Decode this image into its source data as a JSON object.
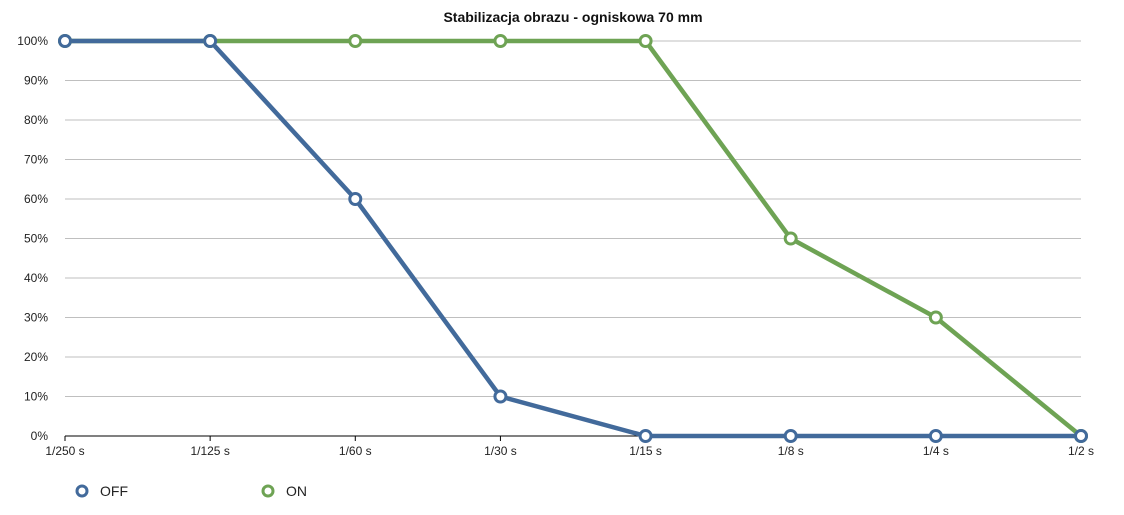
{
  "chart_data": {
    "type": "line",
    "title": "Stabilizacja obrazu - ogniskowa 70 mm",
    "xlabel": "",
    "ylabel": "",
    "categories": [
      "1/250 s",
      "1/125 s",
      "1/60 s",
      "1/30 s",
      "1/15 s",
      "1/8 s",
      "1/4 s",
      "1/2 s"
    ],
    "y_ticks": [
      "0%",
      "10%",
      "20%",
      "30%",
      "40%",
      "50%",
      "60%",
      "70%",
      "80%",
      "90%",
      "100%"
    ],
    "ylim": [
      0,
      100
    ],
    "grid": true,
    "legend_position": "bottom-left",
    "series": [
      {
        "name": "OFF",
        "color": "#426A9B",
        "values": [
          100,
          100,
          60,
          10,
          0,
          0,
          0,
          0
        ]
      },
      {
        "name": "ON",
        "color": "#6EA354",
        "values": [
          100,
          100,
          100,
          100,
          100,
          50,
          30,
          0
        ]
      }
    ]
  }
}
